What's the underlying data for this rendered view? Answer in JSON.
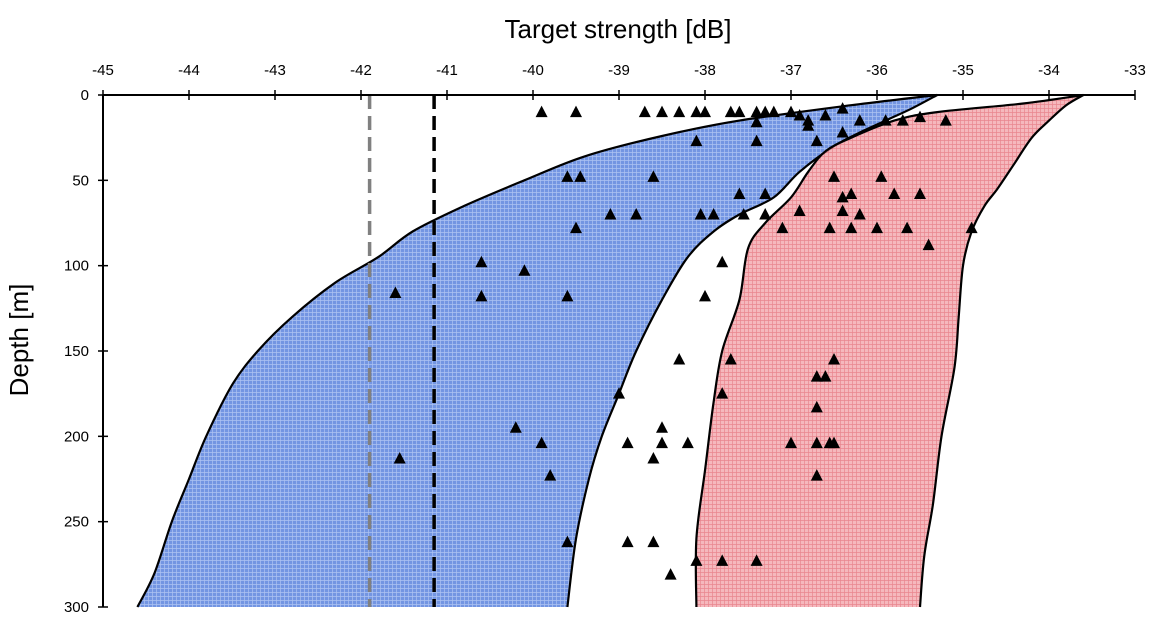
{
  "chart_data": {
    "type": "scatter",
    "xlabel": "Target strength [dB]",
    "ylabel": "Depth [m]",
    "x_axis_position": "top",
    "y_axis_inverted": true,
    "xlim": [
      -45,
      -33
    ],
    "ylim": [
      0,
      300
    ],
    "x_ticks": [
      -45,
      -44,
      -43,
      -42,
      -41,
      -40,
      -39,
      -38,
      -37,
      -36,
      -35,
      -34,
      -33
    ],
    "y_ticks": [
      0,
      50,
      100,
      150,
      200,
      250,
      300
    ],
    "grid": false,
    "legend": "none",
    "bands": [
      {
        "color": "#4f79d6",
        "left_edge": [
          [
            -35.3,
            0
          ],
          [
            -36.3,
            6
          ],
          [
            -37.6,
            15
          ],
          [
            -38.5,
            24
          ],
          [
            -39.4,
            36
          ],
          [
            -40.1,
            50
          ],
          [
            -40.8,
            65
          ],
          [
            -41.4,
            80
          ],
          [
            -41.8,
            95
          ],
          [
            -42.3,
            110
          ],
          [
            -42.8,
            130
          ],
          [
            -43.2,
            150
          ],
          [
            -43.5,
            170
          ],
          [
            -43.8,
            200
          ],
          [
            -44.0,
            225
          ],
          [
            -44.2,
            250
          ],
          [
            -44.4,
            280
          ],
          [
            -44.6,
            300
          ]
        ],
        "right_edge": [
          [
            -35.3,
            0
          ],
          [
            -35.6,
            8
          ],
          [
            -35.9,
            15
          ],
          [
            -36.2,
            22
          ],
          [
            -36.5,
            30
          ],
          [
            -36.9,
            45
          ],
          [
            -37.2,
            60
          ],
          [
            -37.6,
            70
          ],
          [
            -37.9,
            80
          ],
          [
            -38.2,
            95
          ],
          [
            -38.5,
            120
          ],
          [
            -38.8,
            150
          ],
          [
            -39.0,
            175
          ],
          [
            -39.2,
            200
          ],
          [
            -39.35,
            225
          ],
          [
            -39.5,
            260
          ],
          [
            -39.6,
            300
          ]
        ]
      },
      {
        "color": "#d94f5d",
        "left_edge": [
          [
            -33.6,
            0
          ],
          [
            -34.3,
            5
          ],
          [
            -35.3,
            10
          ],
          [
            -35.8,
            15
          ],
          [
            -36.3,
            25
          ],
          [
            -36.6,
            33
          ],
          [
            -36.8,
            45
          ],
          [
            -37.0,
            60
          ],
          [
            -37.3,
            75
          ],
          [
            -37.5,
            90
          ],
          [
            -37.6,
            120
          ],
          [
            -37.8,
            150
          ],
          [
            -37.9,
            180
          ],
          [
            -38.0,
            220
          ],
          [
            -38.1,
            260
          ],
          [
            -38.1,
            300
          ]
        ],
        "right_edge": [
          [
            -33.6,
            0
          ],
          [
            -33.8,
            6
          ],
          [
            -34.0,
            15
          ],
          [
            -34.2,
            25
          ],
          [
            -34.4,
            40
          ],
          [
            -34.6,
            55
          ],
          [
            -34.75,
            65
          ],
          [
            -34.9,
            80
          ],
          [
            -35.0,
            100
          ],
          [
            -35.05,
            130
          ],
          [
            -35.1,
            160
          ],
          [
            -35.25,
            200
          ],
          [
            -35.35,
            240
          ],
          [
            -35.45,
            270
          ],
          [
            -35.5,
            300
          ]
        ]
      }
    ],
    "reference_lines": [
      {
        "x": -41.9,
        "color": "#808080",
        "style": "dashed"
      },
      {
        "x": -41.15,
        "color": "#000000",
        "style": "dashed"
      }
    ],
    "points": [
      [
        -39.9,
        10
      ],
      [
        -39.5,
        10
      ],
      [
        -38.7,
        10
      ],
      [
        -38.5,
        10
      ],
      [
        -38.3,
        10
      ],
      [
        -38.0,
        10
      ],
      [
        -37.7,
        10
      ],
      [
        -37.4,
        10
      ],
      [
        -37.2,
        10
      ],
      [
        -37.0,
        10
      ],
      [
        -38.1,
        10
      ],
      [
        -37.6,
        10
      ],
      [
        -36.6,
        12
      ],
      [
        -36.4,
        8
      ],
      [
        -36.2,
        15
      ],
      [
        -35.9,
        15
      ],
      [
        -35.7,
        15
      ],
      [
        -35.5,
        13
      ],
      [
        -35.2,
        15
      ],
      [
        -36.8,
        15
      ],
      [
        -37.4,
        16
      ],
      [
        -37.3,
        10
      ],
      [
        -36.9,
        12
      ],
      [
        -36.8,
        18
      ],
      [
        -36.4,
        22
      ],
      [
        -38.1,
        27
      ],
      [
        -37.4,
        27
      ],
      [
        -36.7,
        27
      ],
      [
        -39.6,
        48
      ],
      [
        -39.45,
        48
      ],
      [
        -38.6,
        48
      ],
      [
        -36.5,
        48
      ],
      [
        -35.95,
        48
      ],
      [
        -37.6,
        58
      ],
      [
        -37.3,
        58
      ],
      [
        -36.3,
        58
      ],
      [
        -35.8,
        58
      ],
      [
        -35.5,
        58
      ],
      [
        -36.4,
        60
      ],
      [
        -39.1,
        70
      ],
      [
        -38.8,
        70
      ],
      [
        -38.05,
        70
      ],
      [
        -37.9,
        70
      ],
      [
        -37.55,
        70
      ],
      [
        -37.3,
        70
      ],
      [
        -36.9,
        68
      ],
      [
        -36.4,
        68
      ],
      [
        -36.2,
        70
      ],
      [
        -39.5,
        78
      ],
      [
        -37.1,
        78
      ],
      [
        -36.55,
        78
      ],
      [
        -36.3,
        78
      ],
      [
        -36.0,
        78
      ],
      [
        -35.65,
        78
      ],
      [
        -34.9,
        78
      ],
      [
        -35.4,
        88
      ],
      [
        -40.6,
        98
      ],
      [
        -37.8,
        98
      ],
      [
        -40.1,
        103
      ],
      [
        -41.6,
        116
      ],
      [
        -40.6,
        118
      ],
      [
        -39.6,
        118
      ],
      [
        -38.0,
        118
      ],
      [
        -38.3,
        155
      ],
      [
        -37.7,
        155
      ],
      [
        -36.5,
        155
      ],
      [
        -36.7,
        165
      ],
      [
        -36.6,
        165
      ],
      [
        -39.0,
        175
      ],
      [
        -37.8,
        175
      ],
      [
        -36.7,
        183
      ],
      [
        -38.5,
        195
      ],
      [
        -40.2,
        195
      ],
      [
        -39.9,
        204
      ],
      [
        -38.9,
        204
      ],
      [
        -38.5,
        204
      ],
      [
        -38.2,
        204
      ],
      [
        -37.0,
        204
      ],
      [
        -36.7,
        204
      ],
      [
        -36.55,
        204
      ],
      [
        -36.5,
        204
      ],
      [
        -41.55,
        213
      ],
      [
        -38.6,
        213
      ],
      [
        -39.8,
        223
      ],
      [
        -36.7,
        223
      ],
      [
        -39.6,
        262
      ],
      [
        -38.9,
        262
      ],
      [
        -38.6,
        262
      ],
      [
        -38.1,
        273
      ],
      [
        -37.8,
        273
      ],
      [
        -37.4,
        273
      ],
      [
        -38.4,
        281
      ]
    ]
  }
}
